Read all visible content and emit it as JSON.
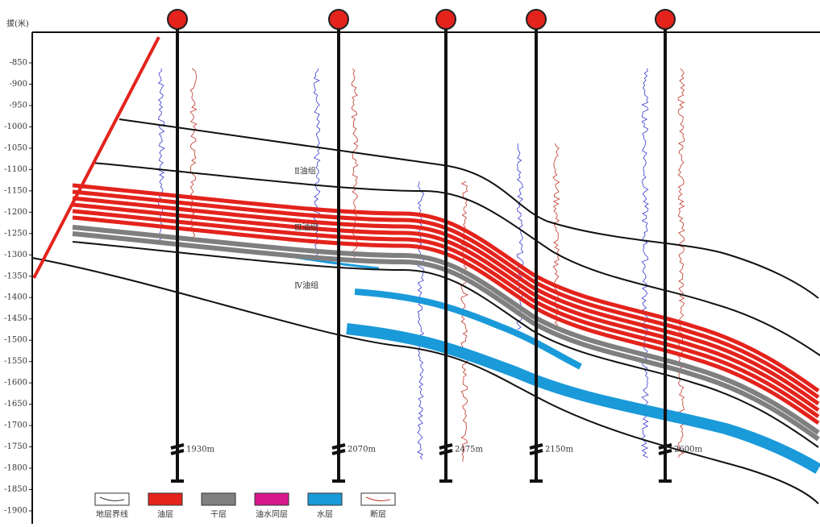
{
  "axis": {
    "label": "拔(米)",
    "ticks": [
      -850,
      -900,
      -950,
      -1000,
      -1050,
      -1100,
      -1150,
      -1200,
      -1250,
      -1300,
      -1350,
      -1400,
      -1450,
      -1500,
      -1550,
      -1600,
      -1650,
      -1700,
      -1750,
      -1800,
      -1850,
      -1900
    ]
  },
  "wells": [
    {
      "depth": "1930m"
    },
    {
      "depth": "2070m"
    },
    {
      "depth": "2475m"
    },
    {
      "depth": "2150m"
    },
    {
      "depth": "2600m"
    }
  ],
  "zones": [
    "Ⅱ油组",
    "Ⅲ油组",
    "Ⅳ油组"
  ],
  "legend": [
    "地层界线",
    "油层",
    "干层",
    "油水同层",
    "水层",
    "断层"
  ]
}
